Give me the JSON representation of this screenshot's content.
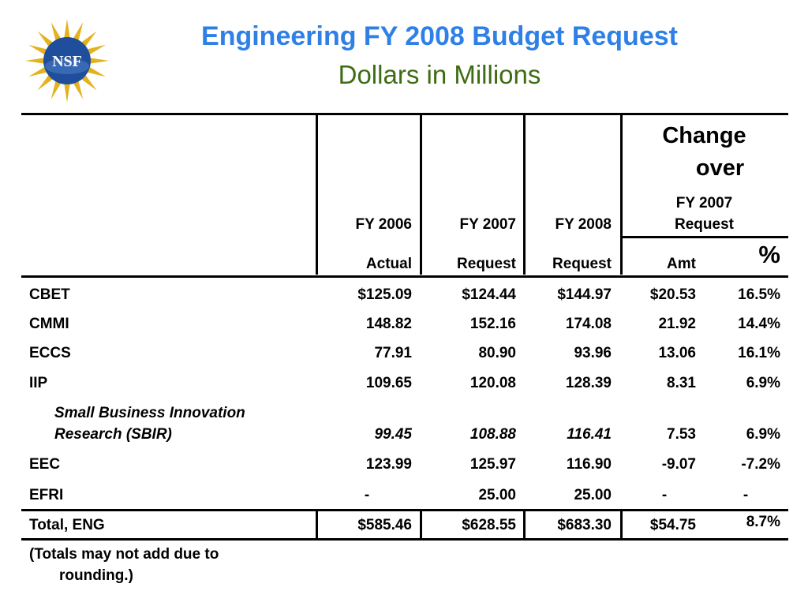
{
  "logo": {
    "text": "NSF",
    "color_primary": "#1f4e9c",
    "color_rays": "#e3b21d"
  },
  "header": {
    "title": "Engineering FY 2008 Budget Request",
    "subtitle": "Dollars in Millions",
    "title_color": "#2f80e6",
    "subtitle_color": "#3e6c12"
  },
  "table": {
    "columns": {
      "fy2006_top": "FY 2006",
      "fy2006_bottom": "Actual",
      "fy2007_top": "FY 2007",
      "fy2007_bottom": "Request",
      "fy2008_top": "FY 2008",
      "fy2008_bottom": "Request",
      "change_line1": "Change",
      "change_line2": "over",
      "change_sub1": "FY 2007",
      "change_sub2": "Request",
      "amt": "Amt",
      "pct": "%"
    },
    "rows": [
      {
        "label": "CBET",
        "fy2006": "$125.09",
        "fy2007": "$124.44",
        "fy2008": "$144.97",
        "amt": "$20.53",
        "pct": "16.5%"
      },
      {
        "label": "CMMI",
        "fy2006": "148.82",
        "fy2007": "152.16",
        "fy2008": "174.08",
        "amt": "21.92",
        "pct": "14.4%"
      },
      {
        "label": "ECCS",
        "fy2006": "77.91",
        "fy2007": "80.90",
        "fy2008": "93.96",
        "amt": "13.06",
        "pct": "16.1%"
      },
      {
        "label": "IIP",
        "fy2006": "109.65",
        "fy2007": "120.08",
        "fy2008": "128.39",
        "amt": "8.31",
        "pct": "6.9%"
      },
      {
        "label_line1": "Small Business Innovation",
        "label_line2": "Research (SBIR)",
        "fy2006": "99.45",
        "fy2007": "108.88",
        "fy2008": "116.41",
        "amt": "7.53",
        "pct": "6.9%"
      },
      {
        "label": "EEC",
        "fy2006": "123.99",
        "fy2007": "125.97",
        "fy2008": "116.90",
        "amt": "-9.07",
        "pct": "-7.2%"
      },
      {
        "label": "EFRI",
        "fy2006": "-",
        "fy2007": "25.00",
        "fy2008": "25.00",
        "amt": "-",
        "pct": "-"
      }
    ],
    "total": {
      "label": "Total, ENG",
      "fy2006": "$585.46",
      "fy2007": "$628.55",
      "fy2008": "$683.30",
      "amt": "$54.75",
      "pct": "8.7%"
    },
    "footnote_line1": "(Totals may not add due to",
    "footnote_line2": "rounding.)"
  }
}
